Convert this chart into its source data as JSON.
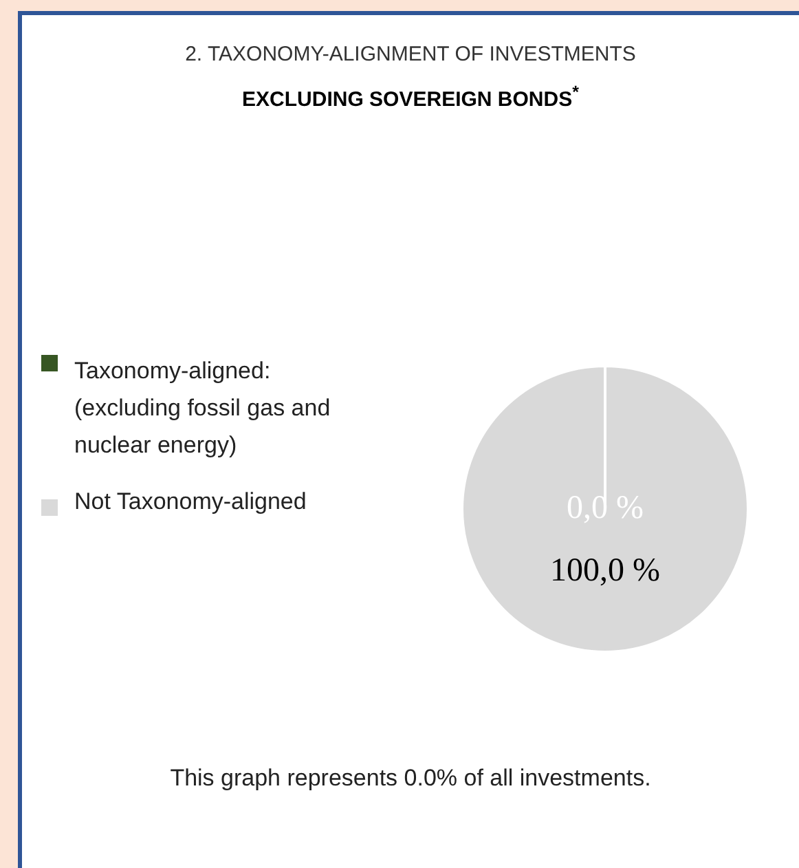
{
  "chart_data": {
    "type": "pie",
    "title": "2. TAXONOMY-ALIGNMENT OF INVESTMENTS",
    "subtitle": "EXCLUDING SOVEREIGN BONDS$^{*}$",
    "categories": [
      "Taxonomy-aligned: (excluding fossil gas and nuclear energy)",
      "Not Taxonomy-aligned"
    ],
    "values": [
      0,
      100
    ],
    "colors": [
      "#375623",
      "#d9d9d9"
    ],
    "value_labels": [
      "0,0 %",
      "100,0 %"
    ],
    "legend": "left",
    "annotations": [
      "This graph represents 0.0% of all investments."
    ]
  }
}
